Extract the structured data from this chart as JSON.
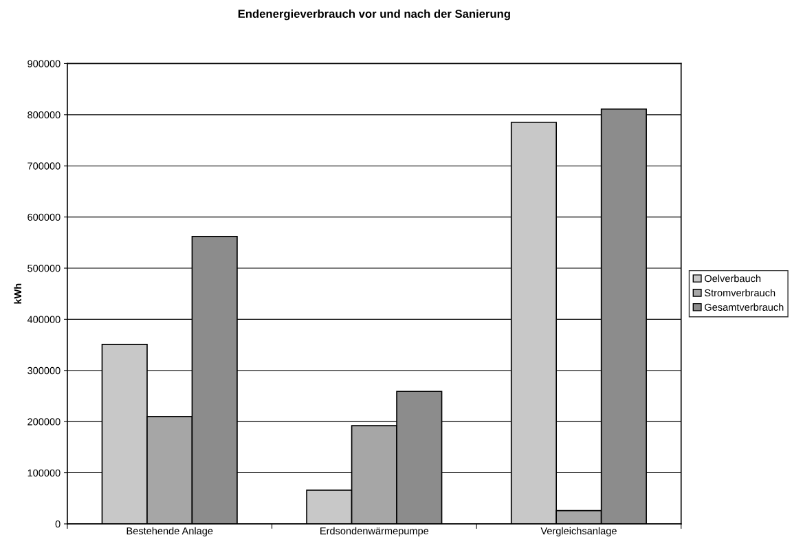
{
  "chart_data": {
    "type": "bar",
    "title": "Endenergieverbrauch vor und nach der Sanierung",
    "ylabel": "kWh",
    "categories": [
      "Bestehende Anlage",
      "Erdsondenwärmepumpe",
      "Vergleichsanlage"
    ],
    "series": [
      {
        "name": "Oelverbauch",
        "color": "#c8c8c8",
        "values": [
          351000,
          66000,
          785000
        ]
      },
      {
        "name": "Stromverbrauch",
        "color": "#a6a6a6",
        "values": [
          210000,
          192000,
          26000
        ]
      },
      {
        "name": "Gesamtverbrauch",
        "color": "#8c8c8c",
        "values": [
          562000,
          259000,
          811000
        ]
      }
    ],
    "ylim": [
      0,
      900000
    ],
    "yticks": [
      0,
      100000,
      200000,
      300000,
      400000,
      500000,
      600000,
      700000,
      800000,
      900000
    ],
    "grid": "y",
    "legend": "right"
  }
}
